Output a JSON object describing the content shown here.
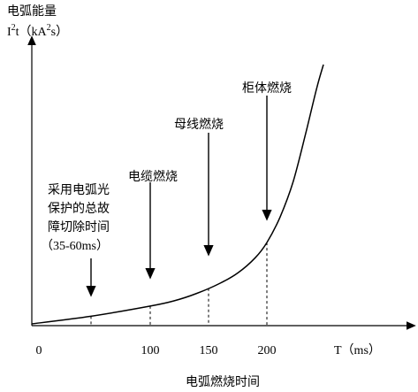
{
  "chart_data": {
    "type": "line",
    "ylabel_line1": "电弧能量",
    "ylabel_line2_main": "I",
    "ylabel_line2_sup1": "2",
    "ylabel_line2_mid": "t（kA",
    "ylabel_line2_sup2": "2",
    "ylabel_line2_end": "s）",
    "xlabel": "电弧燃烧时间",
    "x_axis_unit_label": "T（ms）",
    "x_ticks": [
      "0",
      "100",
      "150",
      "200"
    ],
    "x_tick_values": [
      0,
      100,
      150,
      200
    ],
    "series": [
      {
        "x": [
          0,
          50,
          100,
          120,
          140,
          160,
          175,
          190,
          200,
          210,
          220,
          230,
          238,
          243
        ],
        "y": [
          0.0,
          0.03,
          0.07,
          0.09,
          0.12,
          0.16,
          0.2,
          0.26,
          0.32,
          0.42,
          0.56,
          0.76,
          0.93,
          1.02
        ]
      }
    ],
    "events": [
      {
        "label_lines": [
          "采用电弧光",
          "保护的总故",
          "障切除时间",
          "（35-60ms）"
        ],
        "x": 50
      },
      {
        "label_lines": [
          "电缆燃烧"
        ],
        "x": 100
      },
      {
        "label_lines": [
          "母线燃烧"
        ],
        "x": 150
      },
      {
        "label_lines": [
          "柜体燃烧"
        ],
        "x": 200
      }
    ],
    "xlim": [
      0,
      330
    ],
    "ylim": [
      0,
      1.1
    ]
  }
}
